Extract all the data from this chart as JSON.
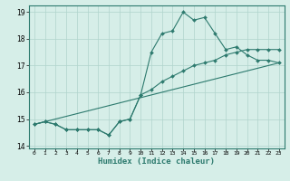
{
  "title": "",
  "xlabel": "Humidex (Indice chaleur)",
  "bg_color": "#d6eee8",
  "line_color": "#2d7a6e",
  "grid_color": "#b0d4cc",
  "xlim": [
    -0.5,
    23.5
  ],
  "ylim": [
    13.9,
    19.25
  ],
  "yticks": [
    14,
    15,
    16,
    17,
    18,
    19
  ],
  "xticks": [
    0,
    1,
    2,
    3,
    4,
    5,
    6,
    7,
    8,
    9,
    10,
    11,
    12,
    13,
    14,
    15,
    16,
    17,
    18,
    19,
    20,
    21,
    22,
    23
  ],
  "series1_x": [
    0,
    1,
    2,
    3,
    4,
    5,
    6,
    7,
    8,
    9,
    10,
    11,
    12,
    13,
    14,
    15,
    16,
    17,
    18,
    19,
    20,
    21,
    22,
    23
  ],
  "series1_y": [
    14.8,
    14.9,
    14.8,
    14.6,
    14.6,
    14.6,
    14.6,
    14.4,
    14.9,
    15.0,
    15.9,
    17.5,
    18.2,
    18.3,
    19.0,
    18.7,
    18.8,
    18.2,
    17.6,
    17.7,
    17.4,
    17.2,
    17.2,
    17.1
  ],
  "series2_x": [
    0,
    1,
    2,
    3,
    4,
    5,
    6,
    7,
    8,
    9,
    10,
    11,
    12,
    13,
    14,
    15,
    16,
    17,
    18,
    19,
    20,
    21,
    22,
    23
  ],
  "series2_y": [
    14.8,
    14.9,
    14.8,
    14.6,
    14.6,
    14.6,
    14.6,
    14.4,
    14.9,
    15.0,
    15.9,
    16.1,
    16.4,
    16.6,
    16.8,
    17.0,
    17.1,
    17.2,
    17.4,
    17.5,
    17.6,
    17.6,
    17.6,
    17.6
  ],
  "series3_x": [
    0,
    23
  ],
  "series3_y": [
    14.8,
    17.1
  ]
}
